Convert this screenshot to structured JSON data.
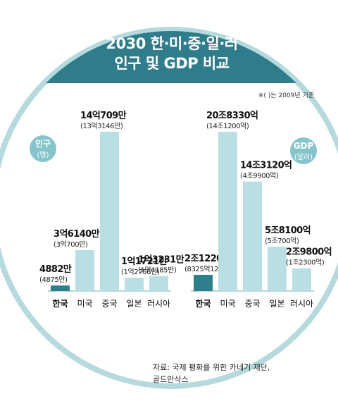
{
  "title": {
    "line1": "2030 한·미·중·일·러",
    "line2": "인구 및 GDP 비교"
  },
  "note": "※( )는 2009년 기준",
  "source": {
    "line1": "자료: 국제 평화를 위한 카네기 재단,",
    "line2": "골드만삭스"
  },
  "colors": {
    "band": "#2f7d8a",
    "circle_fill": "#ffffff",
    "circle_rim": "#b6d9de",
    "bar": "#b9dfe4",
    "bar_highlight": "#2e7f8c",
    "badge": "#86c4cc"
  },
  "chart_data": [
    {
      "type": "bar",
      "title": "인구",
      "unit_label": "(명)",
      "categories": [
        "한국",
        "미국",
        "중국",
        "일본",
        "러시아"
      ],
      "values_2030": [
        48820000,
        361400000,
        1407090000,
        117210000,
        132310000
      ],
      "values_2009": [
        48750000,
        307000000,
        1331460000,
        127560000,
        141850000
      ],
      "labels_2030": [
        "4882만",
        "3억6140만",
        "14억709만",
        "1억1721만",
        "1억3231만"
      ],
      "labels_2009": [
        "(4875만)",
        "(3억700만)",
        "(13억3146만)",
        "(1억2756만)",
        "(1억4185만)"
      ],
      "highlight_index": 0
    },
    {
      "type": "bar",
      "title": "GDP",
      "unit_label": "(달러)",
      "categories": [
        "한국",
        "미국",
        "중국",
        "일본",
        "러시아"
      ],
      "values_2030": [
        2.122,
        20.833,
        14.312,
        5.81,
        2.98
      ],
      "values_2009": [
        0.83251,
        14.12,
        4.99,
        5.07,
        1.23
      ],
      "value_unit": "조",
      "labels_2030": [
        "2조1220억",
        "20조8330억",
        "14조3120억",
        "5조8100억",
        "2조9800억"
      ],
      "labels_2009": [
        "(8325억1200만)",
        "(14조1200억)",
        "(4조9900억)",
        "(5조700억)",
        "(1조2300억)"
      ],
      "highlight_index": 0
    }
  ]
}
